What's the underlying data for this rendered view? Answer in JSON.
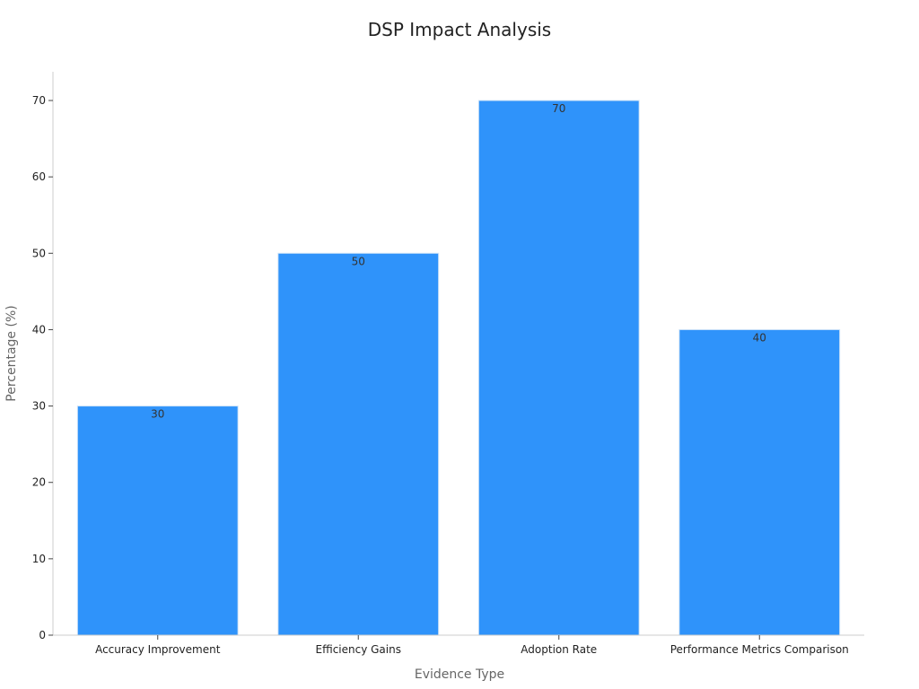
{
  "chart_data": {
    "type": "bar",
    "title": "DSP Impact Analysis",
    "xlabel": "Evidence Type",
    "ylabel": "Percentage (%)",
    "categories": [
      "Accuracy Improvement",
      "Efficiency Gains",
      "Adoption Rate",
      "Performance Metrics Comparison"
    ],
    "values": [
      30,
      50,
      70,
      40
    ],
    "data_labels": [
      "30",
      "50",
      "70",
      "40"
    ],
    "yticks": [
      0,
      10,
      20,
      30,
      40,
      50,
      60,
      70
    ],
    "ylim": [
      0,
      74
    ],
    "grid": false,
    "legend": "none",
    "bar_color": "#2f93fa",
    "bar_edge_color": "#cfe3f7"
  }
}
